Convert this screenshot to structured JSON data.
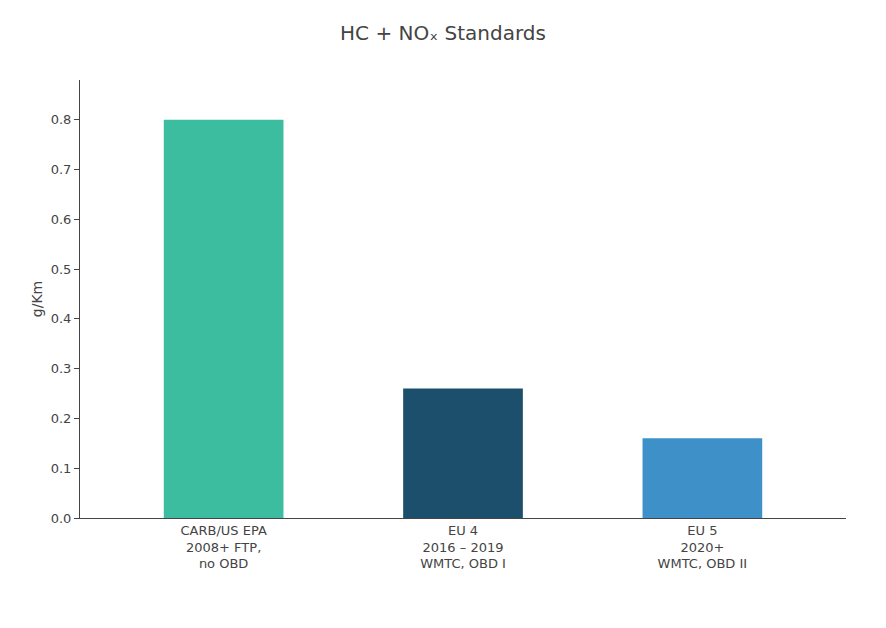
{
  "chart_data": {
    "type": "bar",
    "title": "HC + NOₓ Standards",
    "ylabel": "g/Km",
    "categories": [
      "CARB/US EPA\n2008+ FTP,\nno OBD",
      "EU 4\n2016 – 2019\nWMTC, OBD I",
      "EU 5\n2020+\nWMTC, OBD II"
    ],
    "values": [
      0.8,
      0.26,
      0.16
    ],
    "colors": [
      "#3dbda0",
      "#1b4f6b",
      "#3d91c8"
    ],
    "ylim": [
      0,
      0.88
    ],
    "yticks": [
      {
        "value": 0,
        "label": "0.0"
      },
      0.1,
      0.2,
      0.3,
      0.4,
      0.5,
      0.6,
      0.7,
      0.8
    ],
    "grid": false
  }
}
